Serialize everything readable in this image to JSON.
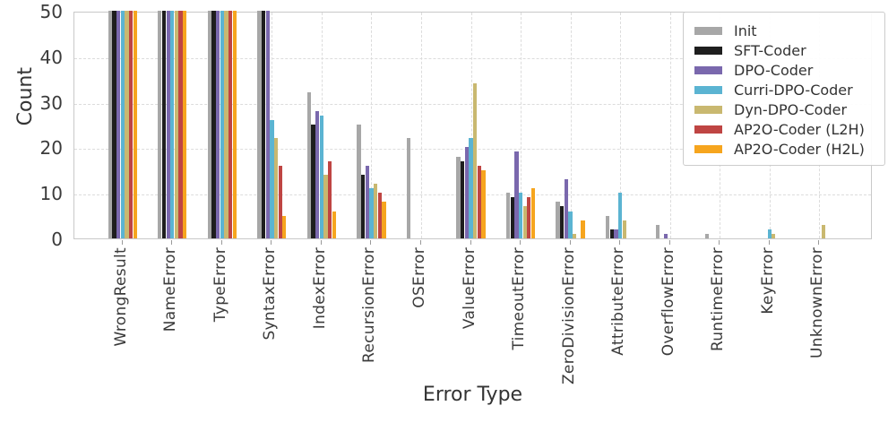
{
  "chart_data": {
    "type": "bar",
    "title": "",
    "xlabel": "Error Type",
    "ylabel": "Count",
    "ylim": [
      0,
      50
    ],
    "yticks": [
      0,
      10,
      20,
      30,
      40,
      50
    ],
    "grid": "dashed, horizontal and vertical",
    "legend_position": "upper right",
    "categories": [
      "WrongResult",
      "NameError",
      "TypeError",
      "SyntaxError",
      "IndexError",
      "RecursionError",
      "OSError",
      "ValueError",
      "TimeoutError",
      "ZeroDivisionError",
      "AttributeError",
      "OverflowError",
      "RuntimeError",
      "KeyError",
      "UnknownError"
    ],
    "series": [
      {
        "name": "Init",
        "color": "#a7a7a7",
        "values": [
          50,
          50,
          50,
          50,
          32,
          25,
          22,
          18,
          10,
          8,
          5,
          3,
          1,
          0,
          0
        ]
      },
      {
        "name": "SFT-Coder",
        "color": "#1e1e1e",
        "values": [
          50,
          50,
          50,
          50,
          25,
          14,
          0,
          17,
          9,
          7,
          2,
          0,
          0,
          0,
          0
        ]
      },
      {
        "name": "DPO-Coder",
        "color": "#7a68ad",
        "values": [
          50,
          50,
          50,
          50,
          28,
          16,
          0,
          20,
          19,
          13,
          2,
          1,
          0,
          0,
          0
        ]
      },
      {
        "name": "Curri-DPO-Coder",
        "color": "#5bb4d2",
        "values": [
          50,
          50,
          50,
          26,
          27,
          11,
          0,
          22,
          10,
          6,
          10,
          0,
          0,
          2,
          0
        ]
      },
      {
        "name": "Dyn-DPO-Coder",
        "color": "#c9b870",
        "values": [
          50,
          50,
          50,
          22,
          14,
          12,
          0,
          34,
          7,
          1,
          4,
          0,
          0,
          1,
          3
        ]
      },
      {
        "name": "AP2O-Coder (L2H)",
        "color": "#bf4543",
        "values": [
          50,
          50,
          50,
          16,
          17,
          10,
          0,
          16,
          9,
          0,
          0,
          0,
          0,
          0,
          0
        ]
      },
      {
        "name": "AP2O-Coder (H2L)",
        "color": "#f6a51e",
        "values": [
          50,
          50,
          50,
          5,
          6,
          8,
          0,
          15,
          11,
          4,
          0,
          0,
          0,
          0,
          0
        ]
      }
    ]
  }
}
